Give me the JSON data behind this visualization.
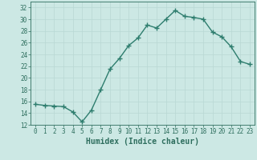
{
  "x": [
    0,
    1,
    2,
    3,
    4,
    5,
    6,
    7,
    8,
    9,
    10,
    11,
    12,
    13,
    14,
    15,
    16,
    17,
    18,
    19,
    20,
    21,
    22,
    23
  ],
  "y": [
    15.5,
    15.3,
    15.2,
    15.1,
    14.2,
    12.5,
    14.5,
    18.0,
    21.5,
    23.3,
    25.5,
    26.8,
    29.0,
    28.5,
    30.0,
    31.5,
    30.5,
    30.3,
    30.0,
    27.8,
    27.0,
    25.3,
    22.8,
    22.3
  ],
  "line_color": "#2e7d6e",
  "marker": "+",
  "marker_size": 4,
  "bg_color": "#cce8e4",
  "grid_color": "#b8d8d4",
  "xlabel": "Humidex (Indice chaleur)",
  "ylim": [
    12,
    33
  ],
  "xlim": [
    -0.5,
    23.5
  ],
  "yticks": [
    12,
    14,
    16,
    18,
    20,
    22,
    24,
    26,
    28,
    30,
    32
  ],
  "xticks": [
    0,
    1,
    2,
    3,
    4,
    5,
    6,
    7,
    8,
    9,
    10,
    11,
    12,
    13,
    14,
    15,
    16,
    17,
    18,
    19,
    20,
    21,
    22,
    23
  ],
  "tick_label_fontsize": 5.5,
  "xlabel_fontsize": 7,
  "text_color": "#2e6e5e"
}
